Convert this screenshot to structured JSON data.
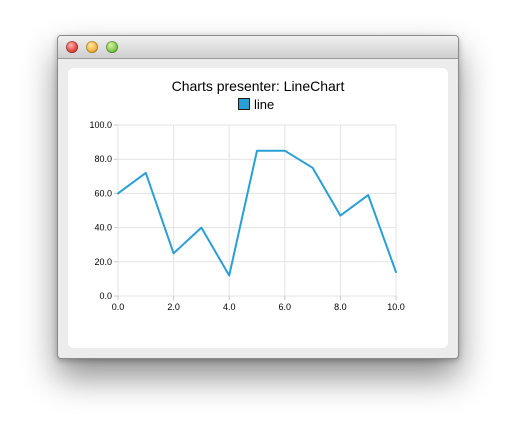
{
  "window": {
    "title": ""
  },
  "chart_data": {
    "type": "line",
    "title": "Charts presenter: LineChart",
    "legend": {
      "placement": "top",
      "entries": [
        "line"
      ]
    },
    "grid": true,
    "xlim": [
      0,
      10
    ],
    "ylim": [
      0,
      100
    ],
    "x_ticks": [
      "0.0",
      "2.0",
      "4.0",
      "6.0",
      "8.0",
      "10.0"
    ],
    "y_ticks": [
      "0.0",
      "20.0",
      "40.0",
      "60.0",
      "80.0",
      "100.0"
    ],
    "series": [
      {
        "name": "line",
        "color": "#2a9fd6",
        "x": [
          0,
          1,
          2,
          3,
          4,
          5,
          6,
          7,
          8,
          9,
          10
        ],
        "y": [
          60,
          72,
          25,
          40,
          12,
          85,
          85,
          75,
          47,
          59,
          14
        ]
      }
    ]
  }
}
